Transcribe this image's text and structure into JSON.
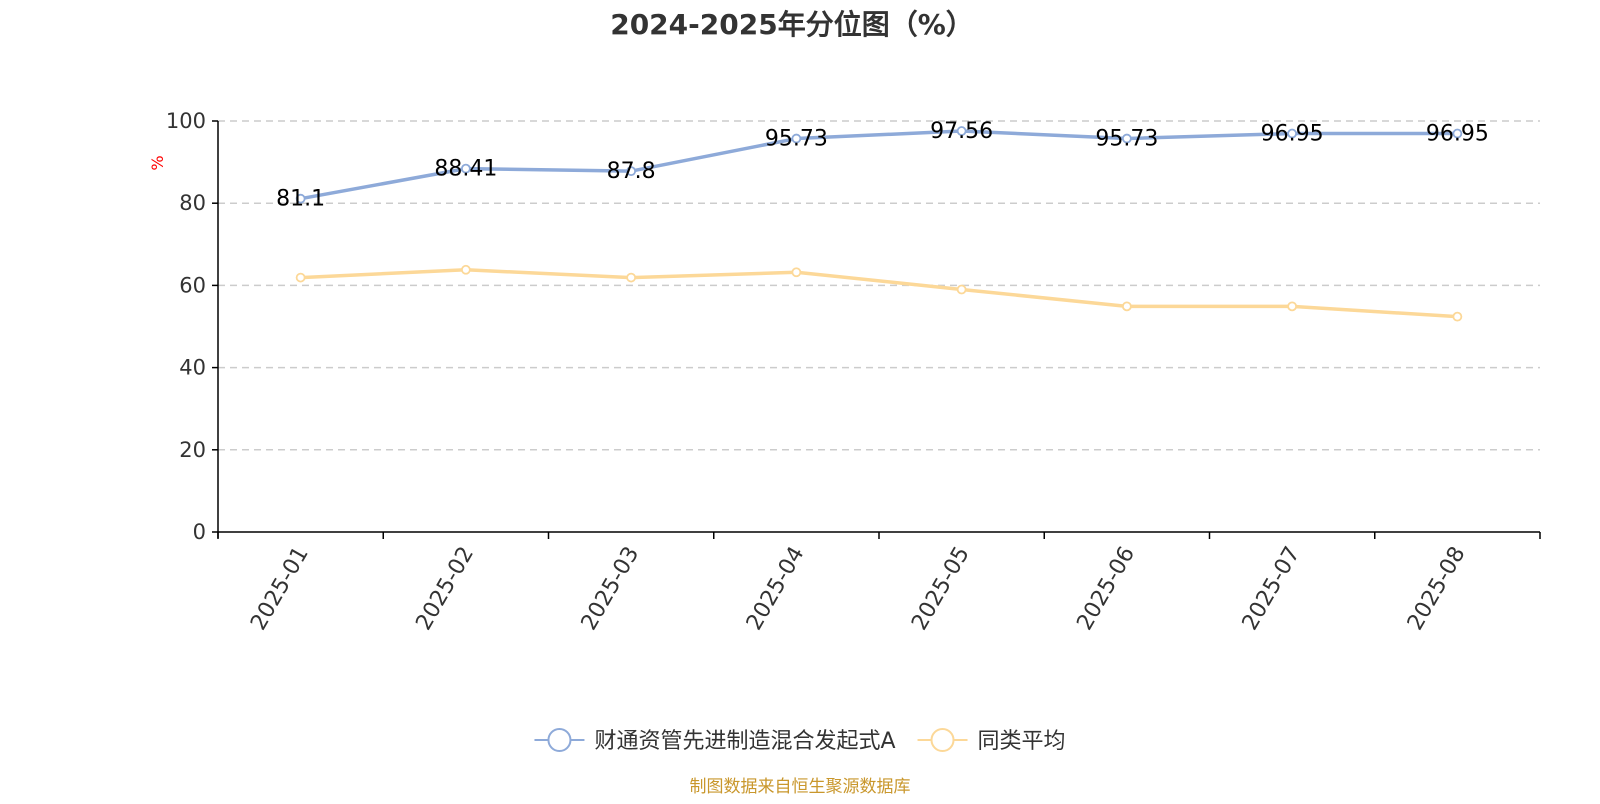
{
  "chart_data": {
    "type": "line",
    "title": "2024-2025年分位图（%）",
    "ylabel": "%",
    "xlabel": "",
    "categories": [
      "2025-01",
      "2025-02",
      "2025-03",
      "2025-04",
      "2025-05",
      "2025-06",
      "2025-07",
      "2025-08"
    ],
    "ylim": [
      0,
      100
    ],
    "yticks": [
      0,
      20,
      40,
      60,
      80,
      100
    ],
    "grid": true,
    "legend_position": "bottom",
    "series": [
      {
        "name": "财通资管先进制造混合发起式A",
        "color": "#8eaad9",
        "values": [
          81.1,
          88.41,
          87.8,
          95.73,
          97.56,
          95.73,
          96.95,
          96.95
        ],
        "labels": [
          "81.1",
          "88.41",
          "87.8",
          "95.73",
          "97.56",
          "95.73",
          "96.95",
          "96.95"
        ]
      },
      {
        "name": "同类平均",
        "color": "#fcd898",
        "values": [
          61.9,
          63.8,
          61.9,
          63.2,
          59.0,
          54.9,
          54.9,
          52.4
        ]
      }
    ],
    "source": "制图数据来自恒生聚源数据库",
    "colors": {
      "title": "#333333",
      "axis": "#000000",
      "grid": "#cccccc",
      "unit_label": "#ff0000",
      "source": "#c9972c"
    }
  }
}
